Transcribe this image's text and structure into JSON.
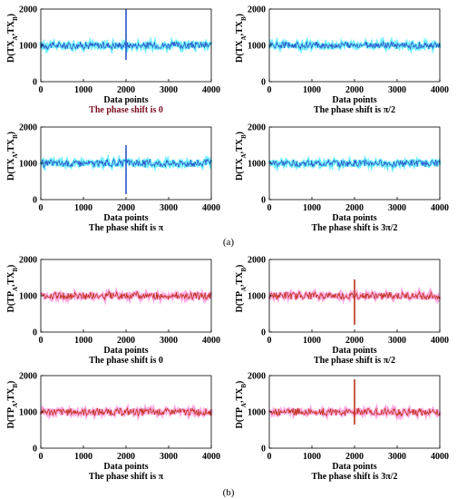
{
  "figure_labels": [
    "(a)",
    "(b)"
  ],
  "chart_data": [
    {
      "type": "line",
      "group": "a",
      "ylabel": "D(TX_A,TX_B)",
      "xlabel": "Data points",
      "caption": "The phase shift is 0",
      "caption_color": "#7a0f1f",
      "xlim": [
        0,
        4000
      ],
      "ylim": [
        0,
        2000
      ],
      "xticks": [
        0,
        1000,
        2000,
        3000,
        4000
      ],
      "yticks": [
        0,
        1000,
        2000
      ],
      "series": [
        {
          "color": "#2b55c8",
          "halo": "#00e5ff",
          "baseline": 1000,
          "noise_amplitude": 120,
          "spike": {
            "x": 2000,
            "ymin": 600,
            "ymax": 2000
          }
        }
      ]
    },
    {
      "type": "line",
      "group": "a",
      "ylabel": "D(TX_A,TX_B)",
      "xlabel": "Data points",
      "caption": "The phase shift is π/2",
      "caption_color": "#000000",
      "xlim": [
        0,
        4000
      ],
      "ylim": [
        0,
        2000
      ],
      "xticks": [
        0,
        1000,
        2000,
        3000,
        4000
      ],
      "yticks": [
        0,
        1000,
        2000
      ],
      "series": [
        {
          "color": "#2b55c8",
          "halo": "#00e5ff",
          "baseline": 1000,
          "noise_amplitude": 110
        }
      ]
    },
    {
      "type": "line",
      "group": "a",
      "ylabel": "D(TX_A,TX_B)",
      "xlabel": "Data points",
      "caption": "The phase shift is π",
      "caption_color": "#000000",
      "xlim": [
        0,
        4000
      ],
      "ylim": [
        0,
        2000
      ],
      "xticks": [
        0,
        1000,
        2000,
        3000,
        4000
      ],
      "yticks": [
        0,
        1000,
        2000
      ],
      "series": [
        {
          "color": "#2b55c8",
          "halo": "#00e5ff",
          "baseline": 1000,
          "noise_amplitude": 120,
          "spike": {
            "x": 2000,
            "ymin": 150,
            "ymax": 1500
          }
        }
      ]
    },
    {
      "type": "line",
      "group": "a",
      "ylabel": "D(TX_A,TX_B)",
      "xlabel": "Data points",
      "caption": "The phase shift is 3π/2",
      "caption_color": "#000000",
      "xlim": [
        0,
        4000
      ],
      "ylim": [
        0,
        2000
      ],
      "xticks": [
        0,
        1000,
        2000,
        3000,
        4000
      ],
      "yticks": [
        0,
        1000,
        2000
      ],
      "series": [
        {
          "color": "#2b55c8",
          "halo": "#00e5ff",
          "baseline": 1000,
          "noise_amplitude": 110
        }
      ]
    },
    {
      "type": "line",
      "group": "b",
      "ylabel": "D(TP_A,TX_B)",
      "xlabel": "Data points",
      "caption": "The phase shift is 0",
      "caption_color": "#000000",
      "xlim": [
        0,
        4000
      ],
      "ylim": [
        0,
        2000
      ],
      "xticks": [
        0,
        1000,
        2000,
        3000,
        4000
      ],
      "yticks": [
        0,
        1000,
        2000
      ],
      "series": [
        {
          "color": "#c0311a",
          "halo": "#ff66cc",
          "baseline": 1000,
          "noise_amplitude": 120
        }
      ]
    },
    {
      "type": "line",
      "group": "b",
      "ylabel": "D(TP_A,TX_B)",
      "xlabel": "Data points",
      "caption": "The phase shift is π/2",
      "caption_color": "#000000",
      "xlim": [
        0,
        4000
      ],
      "ylim": [
        0,
        2000
      ],
      "xticks": [
        0,
        1000,
        2000,
        3000,
        4000
      ],
      "yticks": [
        0,
        1000,
        2000
      ],
      "series": [
        {
          "color": "#c0311a",
          "halo": "#ff66cc",
          "baseline": 1000,
          "noise_amplitude": 120,
          "spike": {
            "x": 2000,
            "ymin": 200,
            "ymax": 1450
          }
        }
      ]
    },
    {
      "type": "line",
      "group": "b",
      "ylabel": "D(TP_A,TX_B)",
      "xlabel": "Data points",
      "caption": "The phase shift is π",
      "caption_color": "#000000",
      "xlim": [
        0,
        4000
      ],
      "ylim": [
        0,
        2000
      ],
      "xticks": [
        0,
        1000,
        2000,
        3000,
        4000
      ],
      "yticks": [
        0,
        1000,
        2000
      ],
      "series": [
        {
          "color": "#c0311a",
          "halo": "#ff66cc",
          "baseline": 1000,
          "noise_amplitude": 120
        }
      ]
    },
    {
      "type": "line",
      "group": "b",
      "ylabel": "D(TP_A,TX_B)",
      "xlabel": "Data points",
      "caption": "The phase shift is 3π/2",
      "caption_color": "#000000",
      "xlim": [
        0,
        4000
      ],
      "ylim": [
        0,
        2000
      ],
      "xticks": [
        0,
        1000,
        2000,
        3000,
        4000
      ],
      "yticks": [
        0,
        1000,
        2000
      ],
      "series": [
        {
          "color": "#c0311a",
          "halo": "#ff66cc",
          "baseline": 1000,
          "noise_amplitude": 120,
          "spike": {
            "x": 2000,
            "ymin": 650,
            "ymax": 1900
          }
        }
      ]
    }
  ]
}
